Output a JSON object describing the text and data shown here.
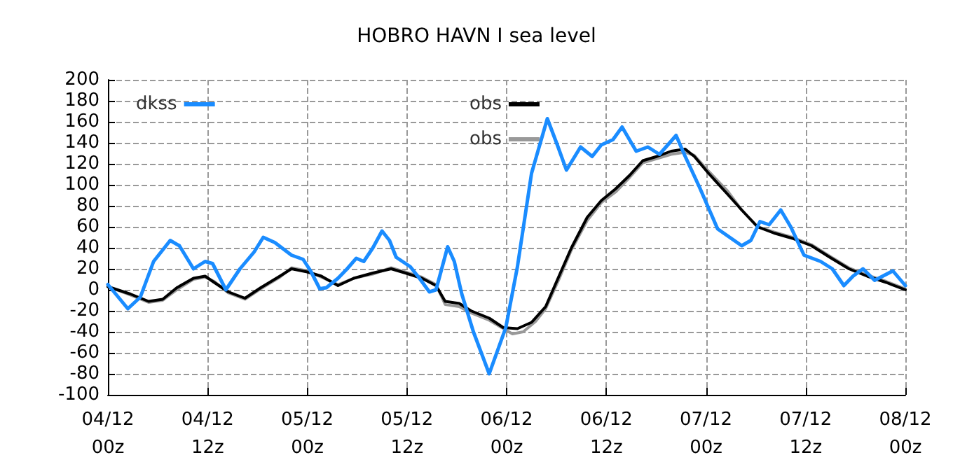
{
  "chart_data": {
    "type": "line",
    "title": "HOBRO HAVN I sea level",
    "xlim": [
      "--12-04T00:00",
      "--12-08T00:00"
    ],
    "xticks": [
      {
        "value": "--12-04T00:00",
        "label": "04/12\n00z"
      },
      {
        "value": "--12-04T12:00",
        "label": "04/12\n12z"
      },
      {
        "value": "--12-05T00:00",
        "label": "05/12\n00z"
      },
      {
        "value": "--12-05T12:00",
        "label": "05/12\n12z"
      },
      {
        "value": "--12-06T00:00",
        "label": "06/12\n00z"
      },
      {
        "value": "--12-06T12:00",
        "label": "06/12\n12z"
      },
      {
        "value": "--12-07T00:00",
        "label": "07/12\n00z"
      },
      {
        "value": "--12-07T12:00",
        "label": "07/12\n12z"
      },
      {
        "value": "--12-08T00:00",
        "label": "08/12\n00z"
      }
    ],
    "ylim": [
      -100,
      200
    ],
    "yticks": [
      -100,
      -80,
      -60,
      -40,
      -20,
      0,
      20,
      40,
      60,
      80,
      100,
      120,
      140,
      160,
      180,
      200
    ],
    "grid": true,
    "legend": "top",
    "marker": "none",
    "line_style": "solid",
    "series": [
      {
        "name": "dkss",
        "color": "#1a8cff",
        "x": [
          "--12-04T00:00",
          "--12-04T02:24",
          "--12-04T03:54",
          "--12-04T05:30",
          "--12-04T07:30",
          "--12-04T08:36",
          "--12-04T10:18",
          "--12-04T11:42",
          "--12-04T12:36",
          "--12-04T14:12",
          "--12-04T15:54",
          "--12-04T17:36",
          "--12-04T18:42",
          "--12-04T20:06",
          "--12-04T22:06",
          "--12-04T23:30",
          "--12-05T00:24",
          "--12-05T01:30",
          "--12-05T02:18",
          "--12-05T03:42",
          "--12-05T04:48",
          "--12-05T05:54",
          "--12-05T06:48",
          "--12-05T07:54",
          "--12-05T09:00",
          "--12-05T09:54",
          "--12-05T10:42",
          "--12-05T12:24",
          "--12-05T13:30",
          "--12-05T14:42",
          "--12-05T15:30",
          "--12-05T16:54",
          "--12-05T17:42",
          "--12-05T18:36",
          "--12-05T20:00",
          "--12-05T21:54",
          "--12-05T23:54",
          "--12-06T01:18",
          "--12-06T03:00",
          "--12-06T04:54",
          "--12-06T06:06",
          "--12-06T07:12",
          "--12-06T08:54",
          "--12-06T10:18",
          "--12-06T11:24",
          "--12-06T12:48",
          "--12-06T13:54",
          "--12-06T15:36",
          "--12-06T17:00",
          "--12-06T18:24",
          "--12-06T20:24",
          "--12-06T21:30",
          "--12-06T23:12",
          "--12-07T01:24",
          "--12-07T04:18",
          "--12-07T05:24",
          "--12-07T06:30",
          "--12-07T07:36",
          "--12-07T09:00",
          "--12-07T10:12",
          "--12-07T11:48",
          "--12-07T13:48",
          "--12-07T15:12",
          "--12-07T16:36",
          "--12-07T17:42",
          "--12-07T18:54",
          "--12-07T20:18",
          "--12-07T22:30",
          "--12-08T00:00"
        ],
        "values": [
          5,
          -18,
          -7,
          27,
          47,
          42,
          20,
          27,
          25,
          0,
          20,
          36,
          50,
          45,
          33,
          29,
          18,
          1,
          2,
          11,
          20,
          30,
          27,
          40,
          56,
          47,
          31,
          22,
          11,
          -2,
          0,
          41,
          27,
          -4,
          -40,
          -80,
          -36,
          22,
          111,
          163,
          138,
          114,
          136,
          127,
          138,
          143,
          155,
          132,
          136,
          129,
          147,
          127,
          98,
          58,
          42,
          47,
          65,
          62,
          76,
          60,
          33,
          27,
          20,
          4,
          13,
          20,
          9,
          18,
          4
        ]
      },
      {
        "name": "obs",
        "color": "#000000",
        "x": [
          "--12-04T00:00",
          "--12-04T02:42",
          "--12-04T04:54",
          "--12-04T06:36",
          "--12-04T08:18",
          "--12-04T10:18",
          "--12-04T11:42",
          "--12-04T12:48",
          "--12-04T14:30",
          "--12-04T16:30",
          "--12-04T18:24",
          "--12-04T20:42",
          "--12-04T22:06",
          "--12-05T00:00",
          "--12-05T01:42",
          "--12-05T03:42",
          "--12-05T05:36",
          "--12-05T07:54",
          "--12-05T10:06",
          "--12-05T11:48",
          "--12-05T13:48",
          "--12-05T15:30",
          "--12-05T16:36",
          "--12-05T18:18",
          "--12-05T19:42",
          "--12-05T21:54",
          "--12-05T23:36",
          "--12-06T01:18",
          "--12-06T03:00",
          "--12-06T04:42",
          "--12-06T06:18",
          "--12-06T07:48",
          "--12-06T09:42",
          "--12-06T11:24",
          "--12-06T13:06",
          "--12-06T14:48",
          "--12-06T16:24",
          "--12-06T18:06",
          "--12-06T19:48",
          "--12-06T21:30",
          "--12-06T22:36",
          "--12-07T00:18",
          "--12-07T02:36",
          "--12-07T04:18",
          "--12-07T06:12",
          "--12-07T08:12",
          "--12-07T10:24",
          "--12-07T12:42",
          "--12-07T14:54",
          "--12-07T17:12",
          "--12-07T19:24",
          "--12-07T21:42",
          "--12-08T00:00"
        ],
        "values": [
          3,
          -4,
          -11,
          -9,
          2,
          11,
          13,
          7,
          -2,
          -8,
          2,
          13,
          20,
          17,
          13,
          4,
          11,
          16,
          20,
          16,
          11,
          4,
          -11,
          -13,
          -20,
          -27,
          -36,
          -37,
          -31,
          -16,
          13,
          40,
          69,
          85,
          96,
          109,
          123,
          127,
          132,
          134,
          127,
          111,
          91,
          76,
          60,
          54,
          49,
          42,
          31,
          20,
          13,
          7,
          0
        ]
      },
      {
        "name": "obs",
        "color": "#999999",
        "x": [
          "--12-04T00:00",
          "--12-04T02:42",
          "--12-04T04:54",
          "--12-04T06:36",
          "--12-04T08:18",
          "--12-04T10:18",
          "--12-04T11:42",
          "--12-04T12:48",
          "--12-04T14:30",
          "--12-04T16:30",
          "--12-04T18:24",
          "--12-04T20:42",
          "--12-04T22:06",
          "--12-05T00:00",
          "--12-05T01:42",
          "--12-05T03:42",
          "--12-05T05:36",
          "--12-05T07:54",
          "--12-05T10:06",
          "--12-05T11:48",
          "--12-05T13:48",
          "--12-05T15:30",
          "--12-05T16:36",
          "--12-05T18:18",
          "--12-05T19:42",
          "--12-05T21:54",
          "--12-06T00:42",
          "--12-06T02:00",
          "--12-06T03:30",
          "--12-06T04:42",
          "--12-06T06:18",
          "--12-06T07:48",
          "--12-06T09:42",
          "--12-06T11:24",
          "--12-06T13:06",
          "--12-06T14:48",
          "--12-06T16:24",
          "--12-06T18:06",
          "--12-06T19:48",
          "--12-06T21:30",
          "--12-06T22:36",
          "--12-07T00:18",
          "--12-07T02:36",
          "--12-07T04:18",
          "--12-07T06:12",
          "--12-07T08:12",
          "--12-07T10:24",
          "--12-07T12:42",
          "--12-07T14:54",
          "--12-07T17:12",
          "--12-07T19:24",
          "--12-07T21:42",
          "--12-08T00:00"
        ],
        "values": [
          3,
          -5,
          -12,
          -10,
          0,
          10,
          12,
          8,
          -3,
          -9,
          1,
          12,
          21,
          18,
          12,
          5,
          11,
          15,
          21,
          17,
          12,
          5,
          -14,
          -16,
          -22,
          -29,
          -42,
          -40,
          -30,
          -18,
          10,
          38,
          66,
          83,
          93,
          107,
          121,
          125,
          129,
          131,
          128,
          113,
          94,
          76,
          60,
          55,
          50,
          43,
          32,
          21,
          14,
          8,
          1
        ]
      }
    ]
  }
}
